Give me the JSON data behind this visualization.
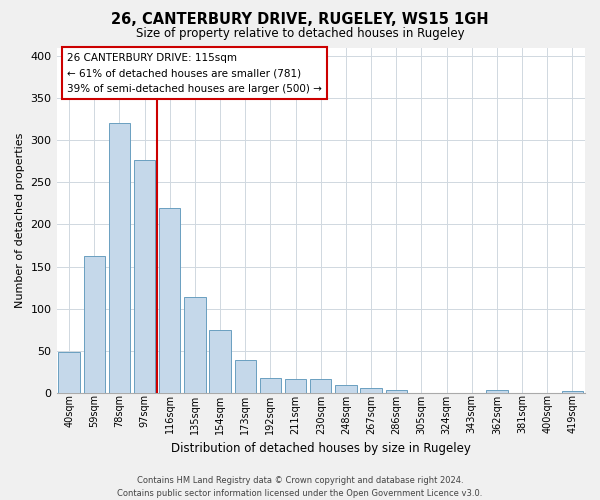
{
  "title": "26, CANTERBURY DRIVE, RUGELEY, WS15 1GH",
  "subtitle": "Size of property relative to detached houses in Rugeley",
  "xlabel": "Distribution of detached houses by size in Rugeley",
  "ylabel": "Number of detached properties",
  "bar_labels": [
    "40sqm",
    "59sqm",
    "78sqm",
    "97sqm",
    "116sqm",
    "135sqm",
    "154sqm",
    "173sqm",
    "192sqm",
    "211sqm",
    "230sqm",
    "248sqm",
    "267sqm",
    "286sqm",
    "305sqm",
    "324sqm",
    "343sqm",
    "362sqm",
    "381sqm",
    "400sqm",
    "419sqm"
  ],
  "bar_values": [
    48,
    163,
    320,
    276,
    220,
    114,
    75,
    39,
    18,
    17,
    16,
    9,
    6,
    4,
    0,
    0,
    0,
    4,
    0,
    0,
    2
  ],
  "bar_color": "#c5d8ea",
  "bar_edge_color": "#6a9fc0",
  "marker_line_color": "#cc0000",
  "annotation_title": "26 CANTERBURY DRIVE: 115sqm",
  "annotation_line1": "← 61% of detached houses are smaller (781)",
  "annotation_line2": "39% of semi-detached houses are larger (500) →",
  "annotation_box_color": "#ffffff",
  "annotation_box_edge": "#cc0000",
  "ylim": [
    0,
    410
  ],
  "yticks": [
    0,
    50,
    100,
    150,
    200,
    250,
    300,
    350,
    400
  ],
  "footer_line1": "Contains HM Land Registry data © Crown copyright and database right 2024.",
  "footer_line2": "Contains public sector information licensed under the Open Government Licence v3.0.",
  "bg_color": "#f0f0f0",
  "plot_bg_color": "#ffffff",
  "grid_color": "#d0d8e0"
}
